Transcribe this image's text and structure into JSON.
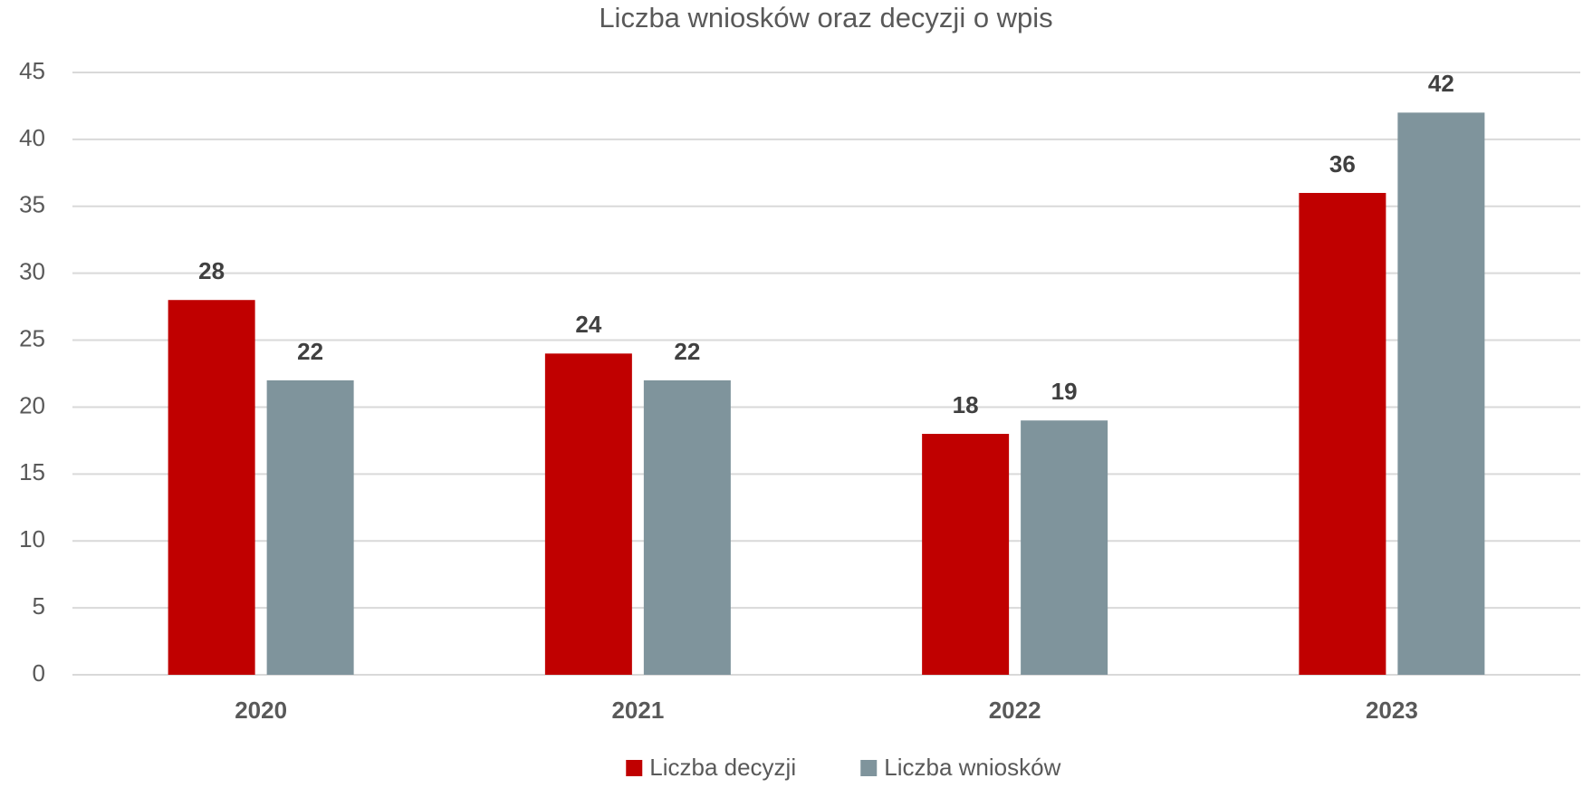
{
  "chart_data": {
    "type": "bar",
    "title": "Liczba wniosków oraz decyzji o wpis",
    "categories": [
      "2020",
      "2021",
      "2022",
      "2023"
    ],
    "series": [
      {
        "name": "Liczba decyzji",
        "color": "#c00000",
        "values": [
          28,
          24,
          18,
          36
        ]
      },
      {
        "name": "Liczba wniosków",
        "color": "#7f949c",
        "values": [
          22,
          22,
          19,
          42
        ]
      }
    ],
    "ylim": [
      0,
      45
    ],
    "yticks": [
      0,
      5,
      10,
      15,
      20,
      25,
      30,
      35,
      40,
      45
    ],
    "grid": true,
    "legend": "bottom"
  }
}
